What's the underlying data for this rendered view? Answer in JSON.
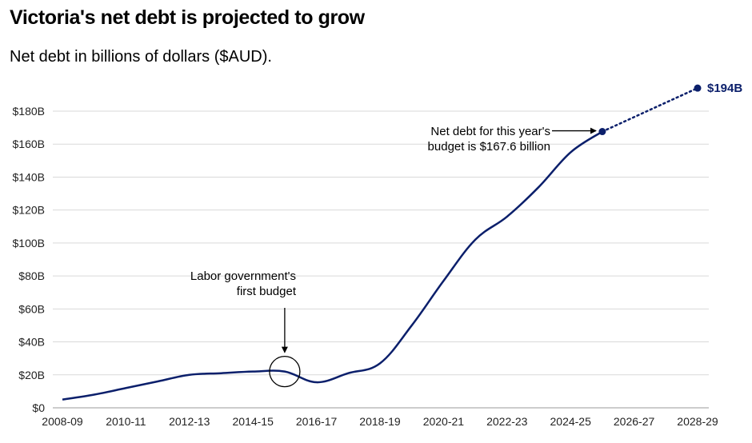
{
  "title": "Victoria's net debt is projected to grow",
  "subtitle": "Net debt in billions of dollars ($AUD).",
  "colors": {
    "line": "#0b1f6b",
    "grid": "#d9d9d9",
    "annotation": "#000000"
  },
  "chart_data": {
    "type": "line",
    "title": "Victoria's net debt is projected to grow",
    "subtitle": "Net debt in billions of dollars ($AUD).",
    "xlabel": "",
    "ylabel": "",
    "x": [
      "2008-09",
      "2009-10",
      "2010-11",
      "2011-12",
      "2012-13",
      "2013-14",
      "2014-15",
      "2015-16",
      "2016-17",
      "2017-18",
      "2018-19",
      "2019-20",
      "2020-21",
      "2021-22",
      "2022-23",
      "2023-24",
      "2024-25",
      "2025-26",
      "2026-27",
      "2027-28",
      "2028-29"
    ],
    "series": [
      {
        "style": "solid",
        "x": [
          "2008-09",
          "2009-10",
          "2010-11",
          "2011-12",
          "2012-13",
          "2013-14",
          "2014-15",
          "2015-16",
          "2016-17",
          "2017-18",
          "2018-19",
          "2019-20",
          "2020-21",
          "2021-22",
          "2022-23",
          "2023-24",
          "2024-25",
          "2025-26"
        ],
        "values": [
          5,
          8,
          12,
          16,
          20,
          21,
          22,
          22,
          15.5,
          21,
          27,
          50,
          77,
          102,
          116,
          134,
          155,
          167.6
        ]
      },
      {
        "style": "dotted",
        "projection": true,
        "x": [
          "2025-26",
          "2028-29"
        ],
        "values": [
          167.6,
          194
        ]
      }
    ],
    "x_tick_labels": [
      "2008-09",
      "2010-11",
      "2012-13",
      "2014-15",
      "2016-17",
      "2018-19",
      "2020-21",
      "2022-23",
      "2024-25",
      "2026-27",
      "2028-29"
    ],
    "y_ticks": [
      0,
      20,
      40,
      60,
      80,
      100,
      120,
      140,
      160,
      180
    ],
    "y_tick_labels": [
      "$0",
      "$20B",
      "$40B",
      "$60B",
      "$80B",
      "$100B",
      "$120B",
      "$140B",
      "$160B",
      "$180B"
    ],
    "ylim": [
      0,
      185
    ],
    "grid": "horizontal",
    "legend": "none",
    "end_label": "$194B",
    "annotations": [
      {
        "lines": [
          "Labor government's",
          "first budget"
        ],
        "x": "2015-16",
        "y": 22,
        "marker": "circle"
      },
      {
        "lines": [
          "Net debt for this year's",
          "budget is $167.6 billion"
        ],
        "x": "2025-26",
        "y": 167.6,
        "marker": "point"
      }
    ]
  }
}
